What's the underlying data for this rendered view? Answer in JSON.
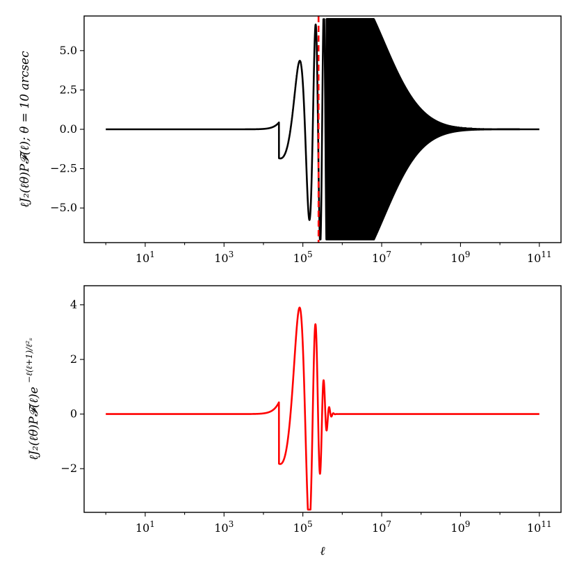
{
  "chart_data": [
    {
      "type": "line",
      "xscale": "log",
      "xlim": [
        1,
        100000000000
      ],
      "ylim": [
        -7.2,
        7.2
      ],
      "xticks": [
        10,
        1000,
        100000,
        10000000,
        1000000000,
        100000000000
      ],
      "xtick_labels": [
        {
          "base": "10",
          "exp": "1"
        },
        {
          "base": "10",
          "exp": "3"
        },
        {
          "base": "10",
          "exp": "5"
        },
        {
          "base": "10",
          "exp": "7"
        },
        {
          "base": "10",
          "exp": "9"
        },
        {
          "base": "10",
          "exp": "11"
        }
      ],
      "yticks": [
        -5.0,
        -2.5,
        0.0,
        2.5,
        5.0
      ],
      "ytick_labels": [
        "−5.0",
        "−2.5",
        "0.0",
        "2.5",
        "5.0"
      ],
      "ylabel": "ℓJ₂(ℓθ)P𝓕(ℓ);  θ = 10 arcsec",
      "xlabel": "",
      "vline": {
        "x": 250000,
        "color": "#ff0000",
        "style": "dashed"
      },
      "series": [
        {
          "color": "#000000",
          "description_points": [
            {
              "x": 10000,
              "y": 0.2
            },
            {
              "x": 50000,
              "y": 4.8
            },
            {
              "x": 120000,
              "y": -5.2
            },
            {
              "x": 250000,
              "y": 5.5
            },
            {
              "x": 1000000,
              "y": 6.5
            },
            {
              "x": 100000000,
              "y": 1.3
            },
            {
              "x": 100000000000,
              "y": 0.0
            }
          ]
        }
      ]
    },
    {
      "type": "line",
      "xscale": "log",
      "xlim": [
        1,
        100000000000
      ],
      "ylim": [
        -3.6,
        4.7
      ],
      "xticks": [
        10,
        1000,
        100000,
        10000000,
        1000000000,
        100000000000
      ],
      "xtick_labels": [
        {
          "base": "10",
          "exp": "1"
        },
        {
          "base": "10",
          "exp": "3"
        },
        {
          "base": "10",
          "exp": "5"
        },
        {
          "base": "10",
          "exp": "7"
        },
        {
          "base": "10",
          "exp": "9"
        },
        {
          "base": "10",
          "exp": "11"
        }
      ],
      "yticks": [
        -2,
        0,
        2,
        4
      ],
      "ytick_labels": [
        "−2",
        "0",
        "2",
        "4"
      ],
      "ylabel": "ℓJ₂(ℓθ)P𝓕(ℓ)e",
      "ylabel_exponent": "−ℓ(ℓ+1)/ℓ²ₛ",
      "xlabel": "ℓ",
      "series": [
        {
          "color": "#ff0000",
          "description_points": [
            {
              "x": 10000,
              "y": 0.2
            },
            {
              "x": 50000,
              "y": 4.3
            },
            {
              "x": 120000,
              "y": -3.3
            },
            {
              "x": 220000,
              "y": 2.05
            },
            {
              "x": 300000,
              "y": -1.0
            },
            {
              "x": 400000,
              "y": 0.45
            },
            {
              "x": 1000000,
              "y": 0.0
            },
            {
              "x": 100000000000,
              "y": 0.0
            }
          ]
        }
      ]
    }
  ]
}
